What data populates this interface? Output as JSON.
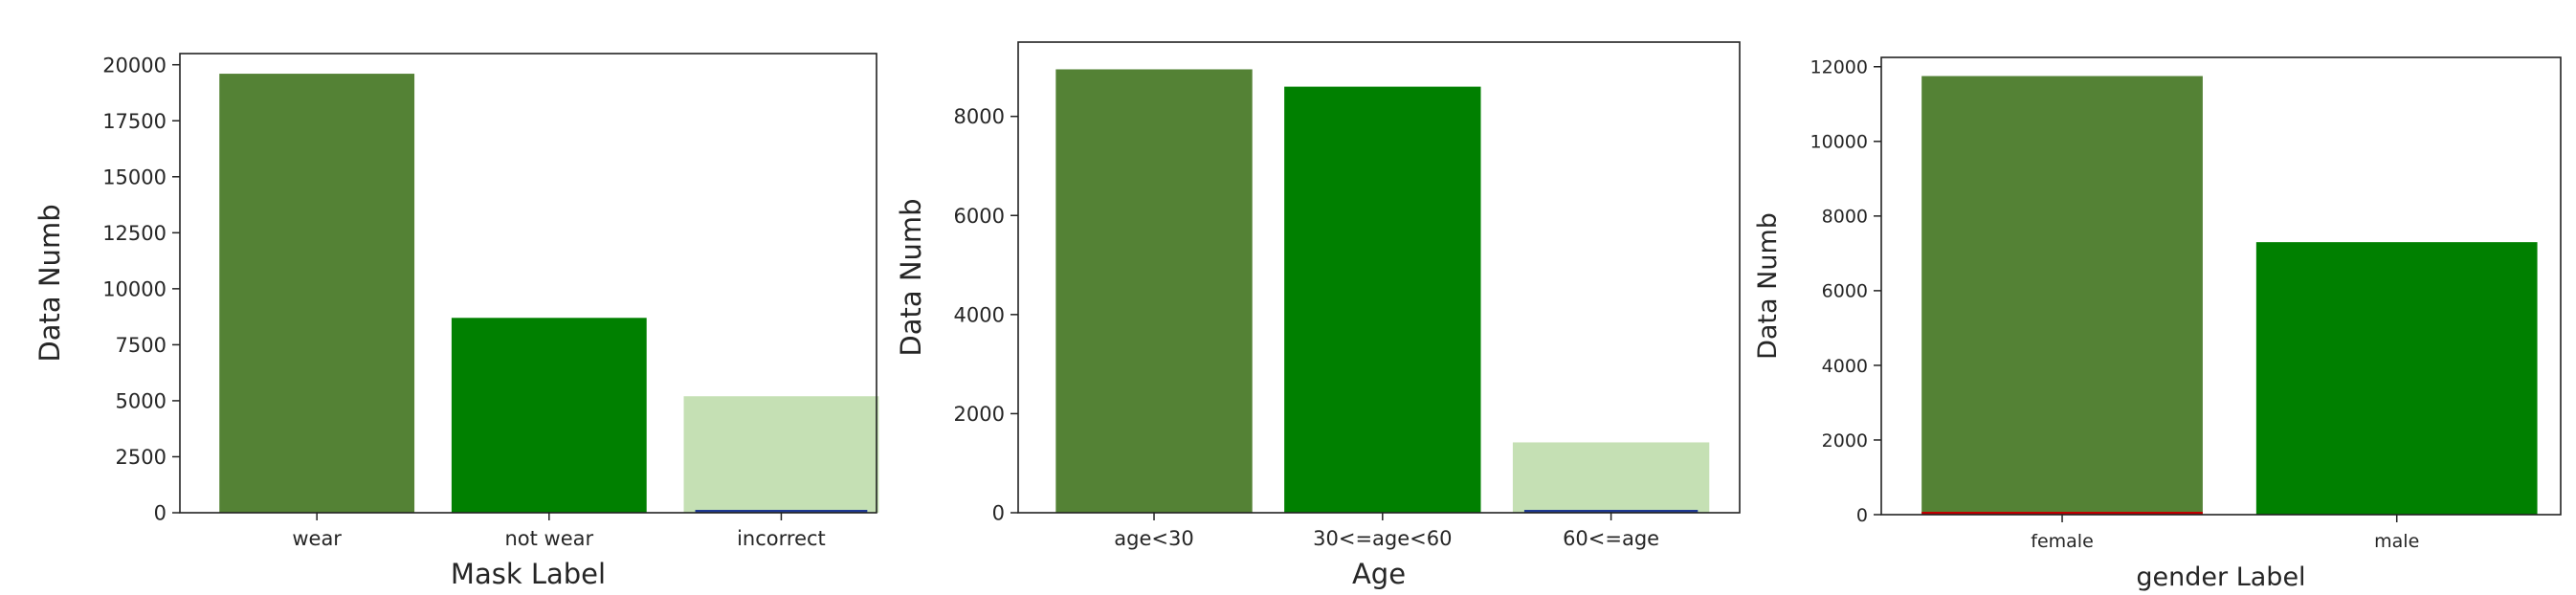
{
  "colors": {
    "olive_green": "#548235",
    "green": "#008000",
    "light_green": "#c5e0b4",
    "dark_blue": "#1f3a93",
    "red": "#c00000",
    "frame": "#222222"
  },
  "chart_data": [
    {
      "type": "bar",
      "categories": [
        "wear",
        "not wear",
        "incorrect"
      ],
      "values": [
        19600,
        8700,
        5200
      ],
      "bar_colors": [
        "#548235",
        "#008000",
        "#c5e0b4"
      ],
      "xlabel": "Mask Label",
      "ylabel": "Data Numb",
      "ylim": [
        0,
        20500
      ],
      "yticks": [
        0,
        2500,
        5000,
        7500,
        10000,
        12500,
        15000,
        17500,
        20000
      ],
      "grid": false
    },
    {
      "type": "bar",
      "categories": [
        "age<30",
        "30<=age<60",
        "60<=age"
      ],
      "values": [
        8950,
        8600,
        1420
      ],
      "bar_colors": [
        "#548235",
        "#008000",
        "#c5e0b4"
      ],
      "xlabel": "Age",
      "ylabel": "Data Numb",
      "ylim": [
        0,
        9500
      ],
      "yticks": [
        0,
        2000,
        4000,
        6000,
        8000
      ],
      "grid": false
    },
    {
      "type": "bar",
      "categories": [
        "female",
        "male"
      ],
      "values": [
        11750,
        7300
      ],
      "bar_colors": [
        "#548235",
        "#008000"
      ],
      "xlabel": "gender Label",
      "ylabel": "Data Numb",
      "ylim": [
        0,
        12250
      ],
      "yticks": [
        0,
        2000,
        4000,
        6000,
        8000,
        10000,
        12000
      ],
      "grid": false
    }
  ]
}
